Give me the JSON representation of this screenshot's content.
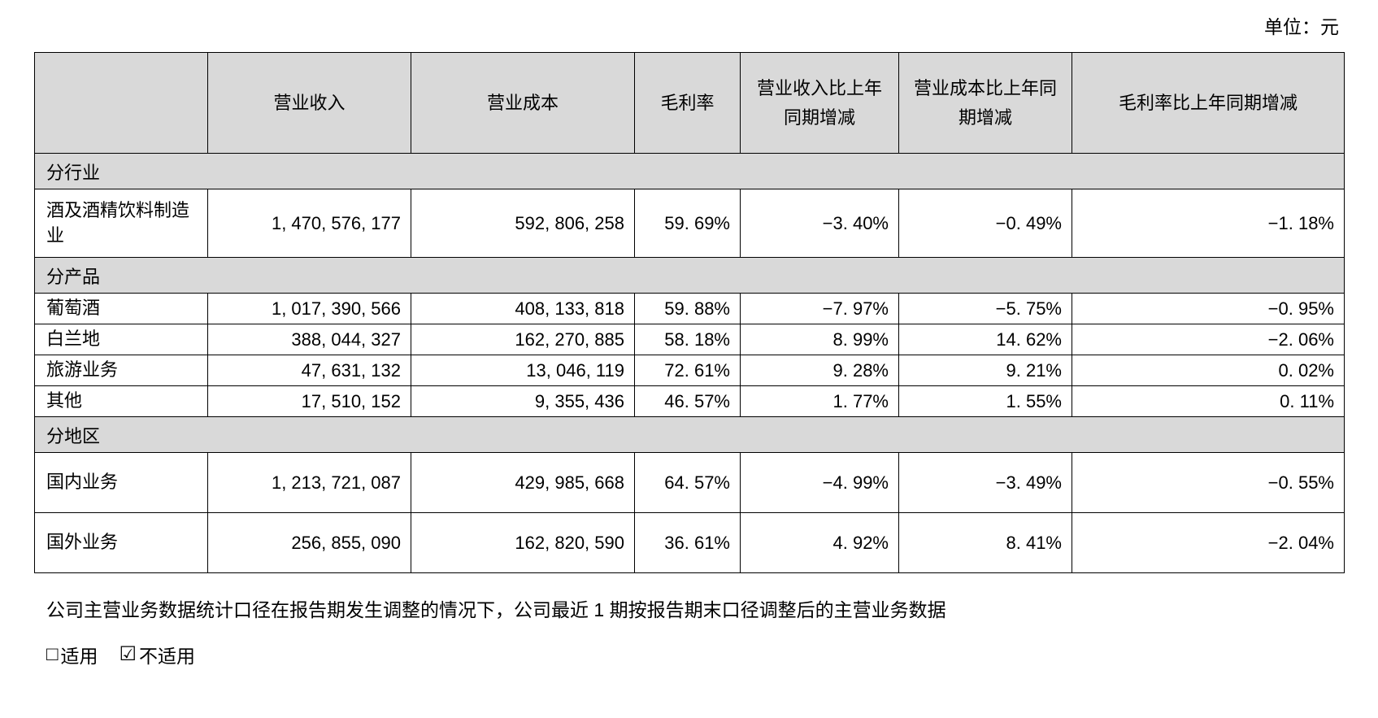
{
  "unit_label": "单位：元",
  "table": {
    "columns": [
      "",
      "营业收入",
      "营业成本",
      "毛利率",
      "营业收入比上年同期增减",
      "营业成本比上年同期增减",
      "毛利率比上年同期增减"
    ],
    "sections": [
      {
        "title": "分行业",
        "rows": [
          {
            "label": "酒及酒精饮料制造业",
            "values": [
              "1, 470, 576, 177",
              "592, 806, 258",
              "59. 69%",
              "−3. 40%",
              "−0. 49%",
              "−1. 18%"
            ]
          }
        ]
      },
      {
        "title": "分产品",
        "rows": [
          {
            "label": "葡萄酒",
            "values": [
              "1, 017, 390, 566",
              "408, 133, 818",
              "59. 88%",
              "−7. 97%",
              "−5. 75%",
              "−0. 95%"
            ]
          },
          {
            "label": "白兰地",
            "values": [
              "388, 044, 327",
              "162, 270, 885",
              "58. 18%",
              "8. 99%",
              "14. 62%",
              "−2. 06%"
            ]
          },
          {
            "label": "旅游业务",
            "values": [
              "47, 631, 132",
              "13, 046, 119",
              "72. 61%",
              "9. 28%",
              "9. 21%",
              "0. 02%"
            ]
          },
          {
            "label": "其他",
            "values": [
              "17, 510, 152",
              "9, 355, 436",
              "46. 57%",
              "1. 77%",
              "1. 55%",
              "0. 11%"
            ]
          }
        ]
      },
      {
        "title": "分地区",
        "rows": [
          {
            "label": "国内业务",
            "values": [
              "1, 213, 721, 087",
              "429, 985, 668",
              "64. 57%",
              "−4. 99%",
              "−3. 49%",
              "−0. 55%"
            ]
          },
          {
            "label": "国外业务",
            "values": [
              "256, 855, 090",
              "162, 820, 590",
              "36. 61%",
              "4. 92%",
              "8. 41%",
              "−2. 04%"
            ]
          }
        ]
      }
    ]
  },
  "footer": {
    "note": "公司主营业务数据统计口径在报告期发生调整的情况下，公司最近 1 期按报告期末口径调整后的主营业务数据",
    "applicable": {
      "icon": "□",
      "label": "适用"
    },
    "not_applicable": {
      "icon": "☑",
      "label": "不适用"
    }
  }
}
